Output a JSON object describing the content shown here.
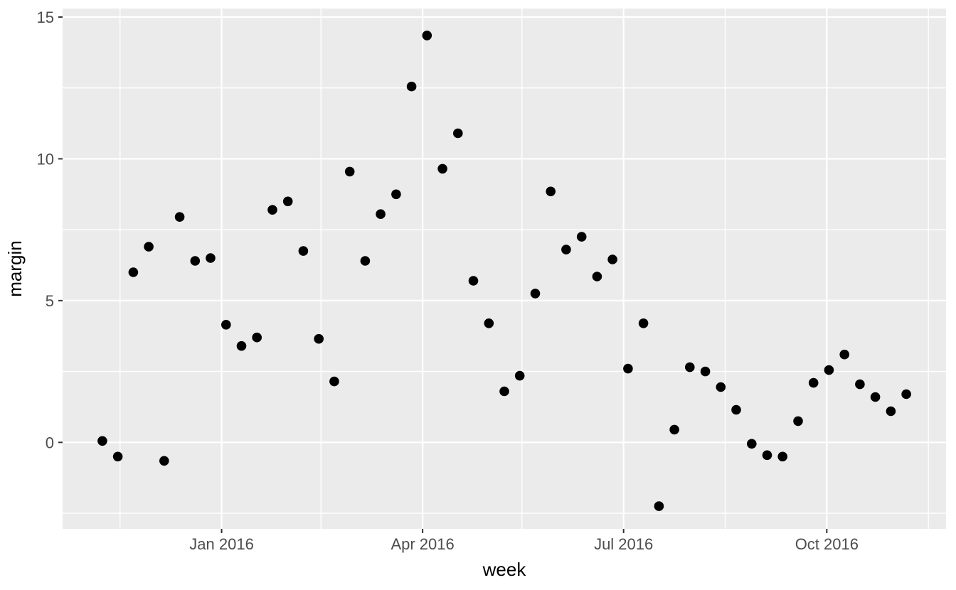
{
  "chart_data": {
    "type": "scatter",
    "title": "",
    "xlabel": "week",
    "ylabel": "margin",
    "grid": "on",
    "legend": "none",
    "x_dates": [
      "2015-11-08",
      "2015-11-15",
      "2015-11-22",
      "2015-11-29",
      "2015-12-06",
      "2015-12-13",
      "2015-12-20",
      "2015-12-27",
      "2016-01-03",
      "2016-01-10",
      "2016-01-17",
      "2016-01-24",
      "2016-01-31",
      "2016-02-07",
      "2016-02-14",
      "2016-02-21",
      "2016-02-28",
      "2016-03-06",
      "2016-03-13",
      "2016-03-20",
      "2016-03-27",
      "2016-04-03",
      "2016-04-10",
      "2016-04-17",
      "2016-04-24",
      "2016-05-01",
      "2016-05-08",
      "2016-05-15",
      "2016-05-22",
      "2016-05-29",
      "2016-06-05",
      "2016-06-12",
      "2016-06-19",
      "2016-06-26",
      "2016-07-03",
      "2016-07-10",
      "2016-07-17",
      "2016-07-24",
      "2016-07-31",
      "2016-08-07",
      "2016-08-14",
      "2016-08-21",
      "2016-08-28",
      "2016-09-04",
      "2016-09-11",
      "2016-09-18",
      "2016-09-25",
      "2016-10-02",
      "2016-10-09",
      "2016-10-16",
      "2016-10-23",
      "2016-10-30",
      "2016-11-06"
    ],
    "y_values": [
      0.05,
      -0.5,
      6.0,
      6.9,
      -0.65,
      7.95,
      6.4,
      6.5,
      4.15,
      3.4,
      3.7,
      8.2,
      8.5,
      6.75,
      3.65,
      2.15,
      9.55,
      6.4,
      8.05,
      8.75,
      12.55,
      14.35,
      9.65,
      10.9,
      5.7,
      4.2,
      1.8,
      2.35,
      5.25,
      8.85,
      6.8,
      7.25,
      5.85,
      6.45,
      2.6,
      4.2,
      -2.25,
      0.45,
      2.65,
      2.5,
      1.95,
      1.15,
      -0.05,
      -0.45,
      -0.5,
      0.75,
      2.1,
      2.55,
      3.1,
      2.05,
      1.6,
      1.1,
      1.7
    ],
    "x_axis": {
      "domain": [
        "2015-10-21",
        "2016-11-24"
      ],
      "ticks": [
        {
          "date": "2016-01-01",
          "label": "Jan 2016"
        },
        {
          "date": "2016-04-01",
          "label": "Apr 2016"
        },
        {
          "date": "2016-07-01",
          "label": "Jul 2016"
        },
        {
          "date": "2016-10-01",
          "label": "Oct 2016"
        }
      ],
      "minor_dates": [
        "2015-11-16",
        "2016-02-15",
        "2016-05-16",
        "2016-08-16",
        "2016-11-16"
      ]
    },
    "y_axis": {
      "domain": [
        -3.05,
        15.3
      ],
      "ticks": [
        {
          "value": 0,
          "label": "0"
        },
        {
          "value": 5,
          "label": "5"
        },
        {
          "value": 10,
          "label": "10"
        },
        {
          "value": 15,
          "label": "15"
        }
      ],
      "minor_values": [
        -2.5,
        2.5,
        7.5,
        12.5
      ]
    },
    "style": {
      "panel_bg": "#EBEBEB",
      "grid_color": "#FFFFFF",
      "point_color": "#000000",
      "tick_label_color": "#4D4D4D",
      "tick_mark_color": "#333333",
      "axis_title_color": "#000000"
    }
  }
}
